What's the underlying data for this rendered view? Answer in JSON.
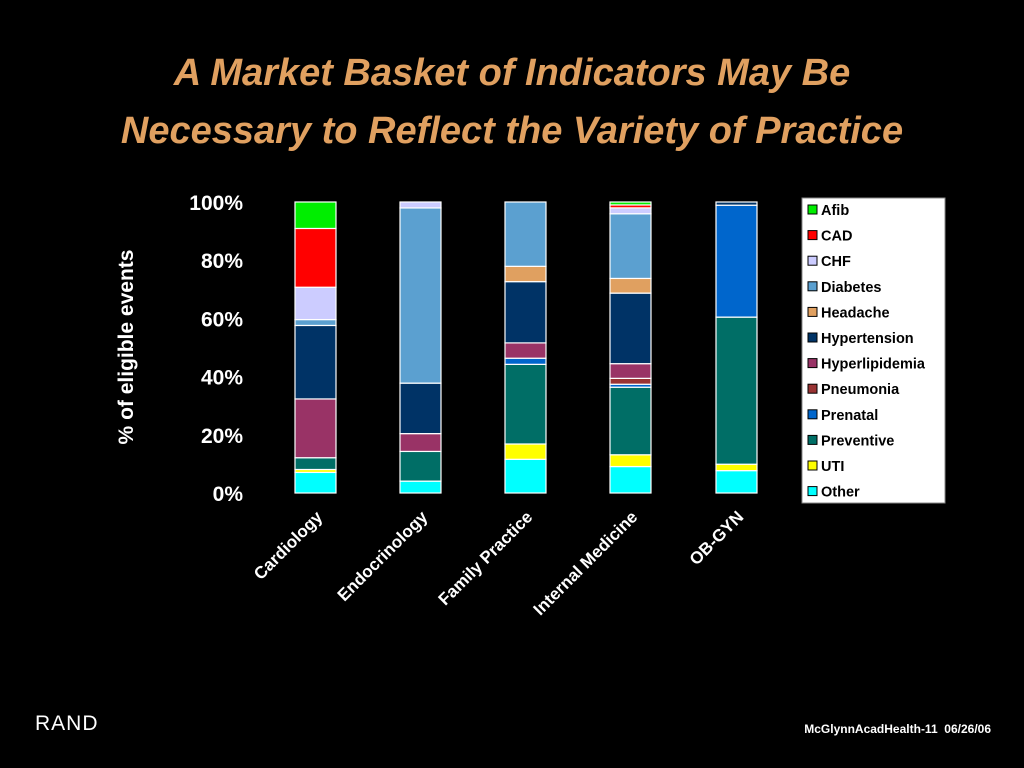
{
  "slide": {
    "title_line1": "A Market Basket of Indicators May Be",
    "title_line2": "Necessary to Reflect the Variety of Practice",
    "logo_text": "RAND",
    "footer_ref": "McGlynnAcadHealth-11  06/26/06"
  },
  "colors": {
    "background": "#000000",
    "title": "#E0A060",
    "text": "#FFFFFF"
  },
  "chart_data": {
    "type": "bar",
    "stacked": true,
    "percent_stacked": true,
    "title": "",
    "xlabel": "",
    "ylabel": "% of eligible events",
    "ylim": [
      0,
      100
    ],
    "yticks": [
      "0%",
      "20%",
      "40%",
      "60%",
      "80%",
      "100%"
    ],
    "grid": false,
    "legend_position": "right",
    "categories": [
      "Cardiology",
      "Endocrinology",
      "Family Practice",
      "Internal Medicine",
      "OB-GYN"
    ],
    "series": [
      {
        "name": "Other",
        "color": "#00FFFF",
        "values": [
          7,
          4,
          11,
          9,
          7
        ]
      },
      {
        "name": "UTI",
        "color": "#FFFF00",
        "values": [
          1,
          0,
          5,
          4,
          2
        ]
      },
      {
        "name": "Preventive",
        "color": "#006E66",
        "values": [
          4,
          10,
          26,
          23,
          46
        ]
      },
      {
        "name": "Prenatal",
        "color": "#0066CC",
        "values": [
          0,
          0,
          2,
          1,
          35
        ]
      },
      {
        "name": "Pneumonia",
        "color": "#993333",
        "values": [
          0,
          0,
          0,
          2,
          0
        ]
      },
      {
        "name": "Hyperlipidemia",
        "color": "#993366",
        "values": [
          20,
          6,
          5,
          5,
          0
        ]
      },
      {
        "name": "Hypertension",
        "color": "#003366",
        "values": [
          25,
          17,
          20,
          24,
          1
        ]
      },
      {
        "name": "Headache",
        "color": "#E0A060",
        "values": [
          0,
          0,
          5,
          5,
          0
        ]
      },
      {
        "name": "Diabetes",
        "color": "#5BA0D0",
        "values": [
          2,
          59,
          21,
          22,
          0
        ]
      },
      {
        "name": "CHF",
        "color": "#CCCCFF",
        "values": [
          11,
          2,
          0,
          2,
          0
        ]
      },
      {
        "name": "CAD",
        "color": "#FF0000",
        "values": [
          20,
          0,
          0,
          1,
          0
        ]
      },
      {
        "name": "Afib",
        "color": "#00EE00",
        "values": [
          9,
          0,
          0,
          1,
          0
        ]
      }
    ],
    "legend_order": [
      "Afib",
      "CAD",
      "CHF",
      "Diabetes",
      "Headache",
      "Hypertension",
      "Hyperlipidemia",
      "Pneumonia",
      "Prenatal",
      "Preventive",
      "UTI",
      "Other"
    ]
  }
}
